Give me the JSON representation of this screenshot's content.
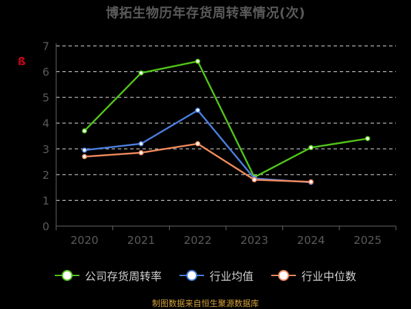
{
  "chart_data": {
    "type": "line",
    "title": "博拓生物历年存货周转率情况(次)",
    "categories": [
      "2020",
      "2021",
      "2022",
      "2023",
      "2024",
      "2025"
    ],
    "ylim": [
      0,
      7
    ],
    "yticks": [
      "0",
      "1",
      "2",
      "3",
      "4",
      "5",
      "6",
      "7"
    ],
    "grid": true,
    "legend_position": "bottom",
    "series": [
      {
        "name": "公司存货周转率",
        "color": "#52c41a",
        "values": [
          3.7,
          5.95,
          6.4,
          1.9,
          3.05,
          3.4
        ]
      },
      {
        "name": "行业均值",
        "color": "#4a7fe0",
        "values": [
          2.95,
          3.2,
          4.5,
          1.85,
          1.7,
          null
        ]
      },
      {
        "name": "行业中位数",
        "color": "#f08a5d",
        "values": [
          2.7,
          2.85,
          3.2,
          1.8,
          1.72,
          null
        ]
      }
    ]
  },
  "source": "制图数据来自恒生聚源数据库"
}
